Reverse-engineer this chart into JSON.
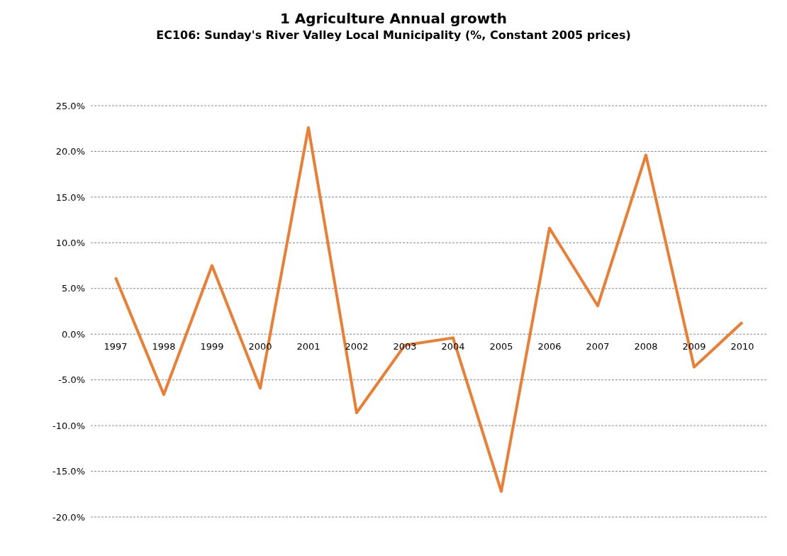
{
  "chart_data": {
    "type": "line",
    "title": "1 Agriculture Annual growth",
    "subtitle": "EC106: Sunday's River Valley Local Municipality (%, Constant 2005 prices)",
    "categories": [
      "1997",
      "1998",
      "1999",
      "2000",
      "2001",
      "2002",
      "2003",
      "2004",
      "2005",
      "2006",
      "2007",
      "2008",
      "2009",
      "2010"
    ],
    "series": [
      {
        "color": "#ed7d31",
        "values": [
          6.2,
          -6.6,
          7.5,
          -5.9,
          22.6,
          -8.6,
          -1.2,
          -0.4,
          -17.2,
          11.6,
          3.1,
          19.6,
          -3.6,
          1.3
        ]
      }
    ],
    "ylim": [
      -20,
      25
    ],
    "yticks": [
      {
        "value": -20,
        "label": "-20.0%"
      },
      {
        "value": -15,
        "label": "-15.0%"
      },
      {
        "value": -10,
        "label": "-10.0%"
      },
      {
        "value": -5,
        "label": "-5.0%"
      },
      {
        "value": 0,
        "label": "0.0%"
      },
      {
        "value": 5,
        "label": "5.0%"
      },
      {
        "value": 10,
        "label": "10.0%"
      },
      {
        "value": 15,
        "label": "15.0%"
      },
      {
        "value": 20,
        "label": "20.0%"
      },
      {
        "value": 25,
        "label": "25.0%"
      }
    ],
    "grid": "y",
    "marker": "none",
    "line_style": "solid"
  }
}
